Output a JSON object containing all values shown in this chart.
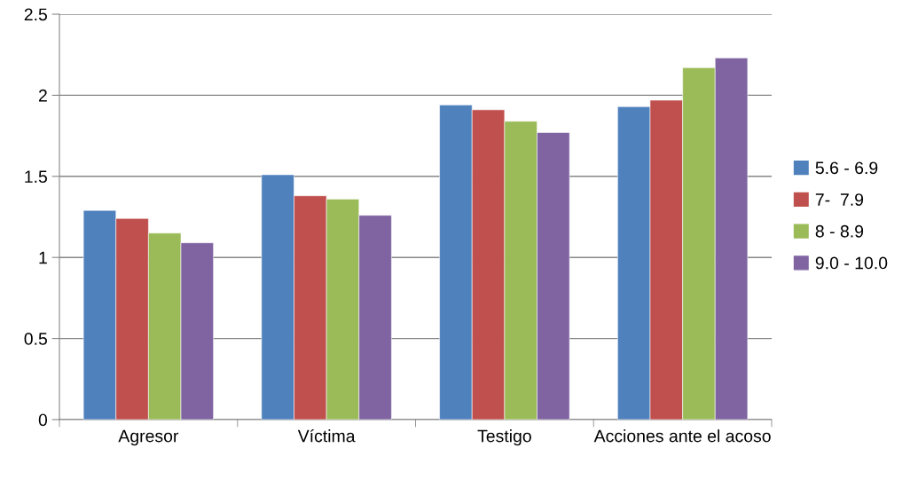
{
  "chart_data": {
    "type": "bar",
    "categories": [
      "Agresor",
      "Víctima",
      "Testigo",
      "Acciones ante el acoso"
    ],
    "series": [
      {
        "name": "5.6 - 6.9",
        "color": "#4f81bd",
        "values": [
          1.29,
          1.51,
          1.94,
          1.93
        ]
      },
      {
        "name": "7-  7.9",
        "color": "#c0504d",
        "values": [
          1.24,
          1.38,
          1.91,
          1.97
        ]
      },
      {
        "name": "8 - 8.9",
        "color": "#9bbb59",
        "values": [
          1.15,
          1.36,
          1.84,
          2.17
        ]
      },
      {
        "name": "9.0 - 10.0",
        "color": "#8064a2",
        "values": [
          1.09,
          1.26,
          1.77,
          2.23
        ]
      }
    ],
    "ylim": [
      0,
      2.5
    ],
    "yticks": [
      0,
      0.5,
      1,
      1.5,
      2,
      2.5
    ],
    "grid": "y",
    "legend": "right"
  }
}
